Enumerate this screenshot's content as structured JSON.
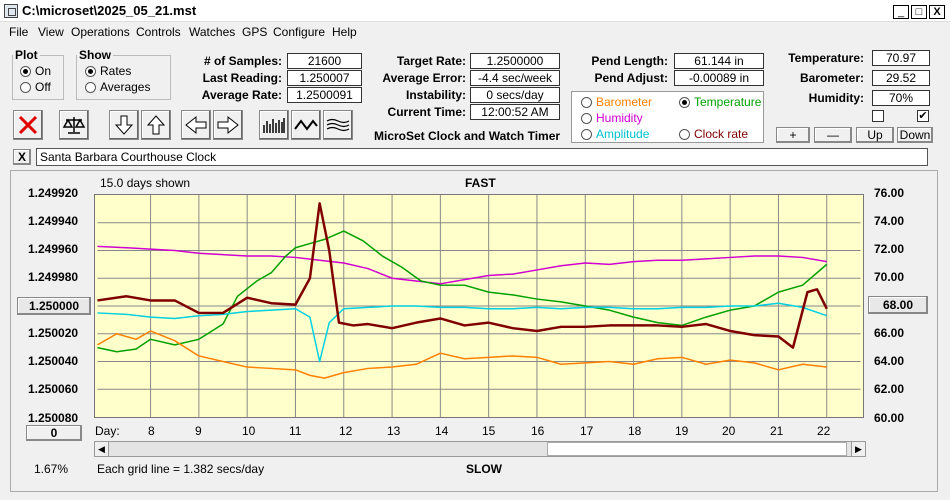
{
  "window": {
    "title": "C:\\microset\\2025_05_21.mst",
    "min": "_",
    "max": "□",
    "close": "X"
  },
  "menu": [
    "File",
    "View",
    "Operations",
    "Controls",
    "Watches",
    "GPS",
    "Configure",
    "Help"
  ],
  "plot_group": {
    "title": "Plot",
    "on": "On",
    "off": "Off",
    "selected": "On"
  },
  "show_group": {
    "title": "Show",
    "rates": "Rates",
    "averages": "Averages",
    "selected": "Rates"
  },
  "stats": {
    "samples_label": "# of Samples:",
    "samples": "21600",
    "last_reading_label": "Last Reading:",
    "last_reading": "1.250007",
    "average_rate_label": "Average Rate:",
    "average_rate": "1.2500091",
    "target_rate_label": "Target Rate:",
    "target_rate": "1.2500000",
    "average_error_label": "Average Error:",
    "average_error": "-4.4 sec/week",
    "instability_label": "Instability:",
    "instability": "0 secs/day",
    "current_time_label": "Current Time:",
    "current_time": "12:00:52 AM",
    "product_name": "MicroSet Clock and Watch Timer",
    "pend_length_label": "Pend Length:",
    "pend_length": "61.144 in",
    "pend_adjust_label": "Pend Adjust:",
    "pend_adjust": "-0.00089 in",
    "temperature_label": "Temperature:",
    "temperature": "70.97",
    "barometer_label": "Barometer:",
    "barometer": "29.52",
    "humidity_label": "Humidity:",
    "humidity": "70%"
  },
  "sensor_select": {
    "barometer": "Barometer",
    "temperature": "Temperature",
    "humidity": "Humidity",
    "amplitude": "Amplitude",
    "clock_rate": "Clock rate",
    "selected": "Temperature"
  },
  "colors": {
    "barometer": "#ff8000",
    "temperature": "#00a000",
    "humidity": "#d000d0",
    "amplitude": "#00d0e0",
    "clock_rate": "#800000",
    "plot_bg": "#ffffcc",
    "grid": "#888888"
  },
  "scale_buttons": {
    "plus": "+",
    "minus": "—",
    "up": "Up",
    "down": "Down"
  },
  "clock_name": "Santa Barbara Courthouse Clock",
  "close_name_button": "X",
  "toolbar_icons": [
    "stop-icon",
    "balance-icon",
    "down-arrow-icon",
    "up-arrow-icon",
    "left-arrow-icon",
    "right-arrow-icon",
    "bars-icon",
    "wave-icon",
    "multi-wave-icon"
  ],
  "plot": {
    "days_shown": "15.0 days shown",
    "fast_label": "FAST",
    "slow_label": "SLOW",
    "grid_note": "Each grid line = 1.382 secs/day",
    "zoom_pct": "1.67%",
    "left_center_btn": "1.250000",
    "right_center_btn": "68.00",
    "left_bottom_btn": "0",
    "day_label": "Day:",
    "left_axis": [
      "1.249920",
      "1.249940",
      "1.249960",
      "1.249980",
      "1.250000",
      "1.250020",
      "1.250040",
      "1.250060",
      "1.250080"
    ],
    "right_axis": [
      "76.00",
      "74.00",
      "72.00",
      "70.00",
      "68.00",
      "66.00",
      "64.00",
      "62.00",
      "60.00"
    ],
    "days": [
      "8",
      "9",
      "10",
      "11",
      "12",
      "13",
      "14",
      "15",
      "16",
      "17",
      "18",
      "19",
      "20",
      "21",
      "22"
    ]
  },
  "chart_data": {
    "type": "line",
    "title": "FAST",
    "xlabel": "Day:",
    "ylabel": "",
    "xlim": [
      6.9,
      22.7
    ],
    "ylim_left": [
      1.24992,
      1.25008
    ],
    "ylim_right": [
      60,
      76
    ],
    "grid": true,
    "series": [
      {
        "name": "Humidity",
        "color": "#d000d0",
        "x": [
          6.9,
          7.5,
          8,
          8.5,
          9,
          9.5,
          10,
          10.5,
          11,
          11.5,
          12,
          12.5,
          13,
          13.5,
          14,
          14.5,
          15,
          15.5,
          16,
          16.5,
          17,
          17.5,
          18,
          18.5,
          19,
          19.5,
          20,
          20.5,
          21,
          21.5,
          22
        ],
        "y": [
          72.3,
          72.2,
          72.1,
          72.0,
          71.8,
          71.7,
          71.6,
          71.6,
          71.5,
          71.3,
          71.1,
          70.7,
          70.0,
          69.8,
          69.6,
          69.9,
          70.2,
          70.3,
          70.6,
          70.9,
          71.1,
          71.0,
          71.2,
          71.3,
          71.3,
          71.4,
          71.5,
          71.6,
          71.6,
          71.5,
          71.2
        ]
      },
      {
        "name": "Temperature",
        "color": "#00a000",
        "x": [
          6.9,
          7.3,
          7.7,
          8,
          8.5,
          9,
          9.5,
          9.8,
          10.2,
          10.5,
          10.8,
          11,
          11.3,
          11.6,
          12,
          12.4,
          12.8,
          13.2,
          13.6,
          14,
          14.5,
          15,
          15.5,
          16,
          16.5,
          17,
          17.5,
          18,
          18.5,
          19,
          19.5,
          20,
          20.5,
          21,
          21.5,
          22
        ],
        "y": [
          65.0,
          64.7,
          64.9,
          65.6,
          65.2,
          65.6,
          66.7,
          68.7,
          69.8,
          70.4,
          71.6,
          72.2,
          72.5,
          72.8,
          73.4,
          72.7,
          71.6,
          70.8,
          69.8,
          69.5,
          69.5,
          69.0,
          68.8,
          68.5,
          68.3,
          68.0,
          67.7,
          67.2,
          66.8,
          66.6,
          67.2,
          67.7,
          68.0,
          69.0,
          69.5,
          71.0
        ]
      },
      {
        "name": "Amplitude",
        "color": "#00d0e0",
        "x": [
          6.9,
          7.5,
          8,
          8.5,
          9,
          9.5,
          10,
          10.5,
          11,
          11.3,
          11.5,
          11.7,
          12,
          12.5,
          13,
          13.5,
          14,
          14.5,
          15,
          15.5,
          16,
          16.5,
          17,
          17.5,
          18,
          18.5,
          19,
          19.5,
          20,
          20.5,
          21,
          21.5,
          22
        ],
        "y": [
          67.5,
          67.4,
          67.2,
          67.1,
          67.3,
          67.4,
          67.6,
          67.7,
          67.8,
          67.2,
          64.0,
          66.8,
          67.8,
          67.9,
          68.0,
          68.0,
          67.9,
          67.9,
          67.8,
          67.8,
          67.9,
          67.8,
          67.9,
          67.9,
          67.8,
          67.8,
          67.9,
          67.9,
          68.0,
          68.0,
          68.2,
          67.9,
          67.3
        ]
      },
      {
        "name": "Barometer",
        "color": "#ff8000",
        "x": [
          6.9,
          7.3,
          7.7,
          8,
          8.5,
          9,
          9.5,
          10,
          10.5,
          11,
          11.3,
          11.6,
          12,
          12.5,
          13,
          13.5,
          14,
          14.5,
          15,
          15.5,
          16,
          16.5,
          17,
          17.5,
          18,
          18.5,
          19,
          19.5,
          20,
          20.5,
          21,
          21.5,
          22
        ],
        "y": [
          65.2,
          66.0,
          65.6,
          66.2,
          65.5,
          64.4,
          64.0,
          63.6,
          63.5,
          63.4,
          63.0,
          62.8,
          63.2,
          63.5,
          63.6,
          63.8,
          64.6,
          64.2,
          64.3,
          64.4,
          64.3,
          63.8,
          63.9,
          64.0,
          63.8,
          64.2,
          64.3,
          63.8,
          64.1,
          63.9,
          63.4,
          63.8,
          63.6
        ]
      },
      {
        "name": "Clock rate",
        "color": "#800000",
        "x": [
          6.9,
          7.5,
          8,
          8.5,
          9,
          9.5,
          10,
          10.5,
          11,
          11.3,
          11.5,
          11.7,
          11.9,
          12.2,
          12.5,
          13,
          13.5,
          14,
          14.5,
          15,
          15.5,
          16,
          16.5,
          17,
          17.5,
          18,
          18.5,
          19,
          19.5,
          20,
          20.5,
          21,
          21.3,
          21.6,
          21.8,
          22
        ],
        "y": [
          1.249996,
          1.249993,
          1.249996,
          1.249996,
          1.250005,
          1.250005,
          1.249994,
          1.249998,
          1.249999,
          1.24998,
          1.249926,
          1.24996,
          1.250012,
          1.250014,
          1.250013,
          1.250016,
          1.250012,
          1.250009,
          1.250014,
          1.250012,
          1.250016,
          1.250018,
          1.250015,
          1.250015,
          1.250014,
          1.250014,
          1.250014,
          1.250015,
          1.250013,
          1.250018,
          1.250021,
          1.250022,
          1.25003,
          1.24999,
          1.249988,
          1.250002
        ]
      }
    ]
  }
}
